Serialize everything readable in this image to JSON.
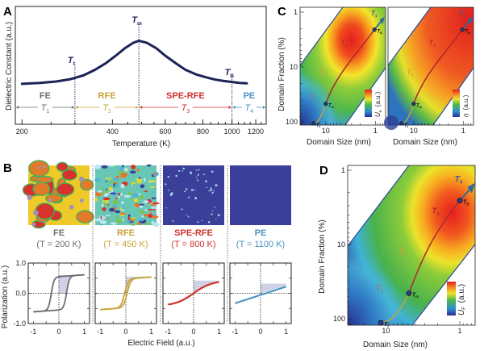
{
  "panels": {
    "A": {
      "letter": "A"
    },
    "B": {
      "letter": "B"
    },
    "C": {
      "letter": "C"
    },
    "D": {
      "letter": "D"
    }
  },
  "colors": {
    "curve": "#1c2357",
    "FE": "#6d6e71",
    "RFE": "#c9a13b",
    "SPE_RFE": "#d1322c",
    "PE": "#4a93c4",
    "shade": "#c7c9e0",
    "map_blue": "#3c3f9a"
  },
  "chart_data": [
    {
      "id": "A",
      "type": "line",
      "title": "",
      "xlabel": "Temperature (K)",
      "ylabel": "Dielectric Constant (a.u.)",
      "xscale": "log",
      "xlim": [
        190,
        1300
      ],
      "ylim": [
        0,
        1
      ],
      "xticks": [
        200,
        400,
        600,
        800,
        1000,
        1200
      ],
      "xtick_labels": [
        "200",
        "400",
        "600",
        "800",
        "1000",
        "1200"
      ],
      "series": [
        {
          "name": "dielectric",
          "x": [
            200,
            230,
            260,
            290,
            320,
            350,
            380,
            410,
            440,
            470,
            490,
            520,
            560,
            600,
            650,
            700,
            760,
            820,
            880,
            940,
            1000,
            1060,
            1120
          ],
          "y": [
            0.38,
            0.39,
            0.405,
            0.43,
            0.47,
            0.53,
            0.6,
            0.68,
            0.76,
            0.82,
            0.84,
            0.82,
            0.76,
            0.68,
            0.6,
            0.53,
            0.48,
            0.45,
            0.425,
            0.41,
            0.4,
            0.39,
            0.385
          ]
        }
      ],
      "markers": [
        {
          "label": "T",
          "sub": "f",
          "x": 300
        },
        {
          "label": "T",
          "sub": "m",
          "x": 490
        },
        {
          "label": "T",
          "sub": "B",
          "x": 1000
        }
      ],
      "regions": [
        {
          "name": "FE",
          "range_label": "T",
          "sub": "1",
          "x0": 190,
          "x1": 300,
          "color_key": "FE"
        },
        {
          "name": "RFE",
          "range_label": "T",
          "sub": "2",
          "x0": 300,
          "x1": 490,
          "color_key": "RFE"
        },
        {
          "name": "SPE-RFE",
          "range_label": "T",
          "sub": "3",
          "x0": 490,
          "x1": 1000,
          "color_key": "SPE_RFE"
        },
        {
          "name": "PE",
          "range_label": "T",
          "sub": "4",
          "x0": 1000,
          "x1": 1300,
          "color_key": "PE"
        }
      ]
    },
    {
      "id": "B",
      "type": "line",
      "xlabel": "Electric Field (a.u.)",
      "ylabel": "Polarization (a.u.)",
      "xlim": [
        -1.2,
        1.2
      ],
      "ylim": [
        -1.0,
        1.0
      ],
      "xticks": [
        -1,
        0,
        1
      ],
      "xtick_labels": [
        "-1",
        "0",
        "1"
      ],
      "yticks": [
        1.0,
        0.0,
        -1.0
      ],
      "ytick_labels": [
        "1.0",
        "0.0",
        "-1.0"
      ],
      "phases": [
        {
          "name": "FE",
          "temp_label": "(T = 200 K)",
          "color_key": "FE",
          "loop": "wide",
          "Ps": 0.6,
          "Ec": 0.3,
          "Pmax": 0.6
        },
        {
          "name": "RFE",
          "temp_label": "(T = 450 K)",
          "color_key": "RFE",
          "loop": "narrow",
          "Ps": 0.52,
          "Ec": 0.05,
          "Pmax": 0.55
        },
        {
          "name": "SPE-RFE",
          "temp_label": "(T = 800 K)",
          "color_key": "SPE_RFE",
          "loop": "none",
          "Ps": 0.42,
          "Ec": 0.0,
          "Pmax": 0.42
        },
        {
          "name": "PE",
          "temp_label": "(T = 1100 K)",
          "color_key": "PE",
          "loop": "linear",
          "Ps": 0.25,
          "Ec": 0.0,
          "Pmax": 0.32
        }
      ]
    },
    {
      "id": "C",
      "type": "heatmap",
      "xlabel": "Domain Size (nm)",
      "ylabel": "Domain Fraction (%)",
      "xscale": "log-reversed",
      "yscale": "log-reversed",
      "xticks": [
        10,
        1
      ],
      "xtick_labels": [
        "10",
        "1"
      ],
      "yticks": [
        1,
        10,
        100
      ],
      "ytick_labels": [
        "1",
        "10",
        "100"
      ],
      "maps": [
        {
          "colorbar_label": "U",
          "colorbar_sub": "e",
          "colorbar_unit": "(a.u.)"
        },
        {
          "colorbar_label": "η",
          "colorbar_sub": "",
          "colorbar_unit": "(a.u.)"
        }
      ],
      "path_points": [
        {
          "label": "T",
          "sub": "f",
          "size_nm": 17,
          "fraction_pct": 100
        },
        {
          "label": "T",
          "sub": "m",
          "size_nm": 9,
          "fraction_pct": 50
        },
        {
          "label": "T",
          "sub": "B",
          "size_nm": 0.75,
          "fraction_pct": 1
        }
      ],
      "segments": [
        "T1",
        "T2",
        "T3",
        "T4"
      ]
    },
    {
      "id": "D",
      "type": "heatmap",
      "xlabel": "Domain Size (nm)",
      "ylabel": "Domain Fraction (%)",
      "xscale": "log-reversed",
      "yscale": "log-reversed",
      "xticks": [
        10,
        1
      ],
      "xtick_labels": [
        "10",
        "1"
      ],
      "yticks": [
        1,
        10,
        100
      ],
      "ytick_labels": [
        "1",
        "10",
        "100"
      ],
      "colorbar_label": "U",
      "colorbar_sub": "F",
      "colorbar_unit": "(a.u.)",
      "path_points": [
        {
          "label": "T",
          "sub": "f",
          "size_nm": 17,
          "fraction_pct": 100
        },
        {
          "label": "T",
          "sub": "m",
          "size_nm": 9,
          "fraction_pct": 50
        },
        {
          "label": "T",
          "sub": "B",
          "size_nm": 0.75,
          "fraction_pct": 1
        }
      ],
      "segment_labels": [
        {
          "label": "T",
          "sub": "1"
        },
        {
          "label": "T",
          "sub": "2"
        },
        {
          "label": "T",
          "sub": "3"
        },
        {
          "label": "T",
          "sub": "4"
        }
      ]
    }
  ]
}
